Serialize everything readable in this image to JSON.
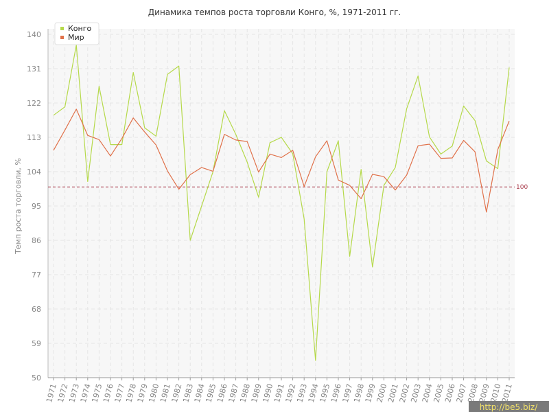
{
  "chart_data": {
    "type": "line",
    "title": "Динамика темпов роста торговли Конго, %, 1971-2011 гг.",
    "xlabel": "",
    "ylabel": "Темп роста торговли, %",
    "ylim": [
      50,
      140
    ],
    "yticks": [
      50,
      59,
      68,
      77,
      86,
      95,
      104,
      113,
      122,
      131,
      140
    ],
    "x": [
      "1971",
      "1972",
      "1973",
      "1974",
      "1975",
      "1976",
      "1977",
      "1978",
      "1979",
      "1980",
      "1981",
      "1982",
      "1983",
      "1984",
      "1985",
      "1986",
      "1987",
      "1988",
      "1989",
      "1990",
      "1991",
      "1992",
      "1993",
      "1994",
      "1995",
      "1996",
      "1997",
      "1998",
      "1999",
      "2000",
      "2001",
      "2002",
      "2003",
      "2004",
      "2005",
      "2006",
      "2007",
      "2008",
      "2009",
      "2010",
      "2011"
    ],
    "grid": true,
    "legend_position": "top-left",
    "reference_line": {
      "value": 100,
      "label": "100",
      "color": "#a83a4a"
    },
    "series": [
      {
        "name": "Конго",
        "color": "#b5d94a",
        "values": [
          118.8,
          121,
          137.2,
          101.4,
          126.4,
          111.1,
          111.1,
          130,
          115.5,
          113.3,
          129.5,
          131.7,
          86,
          95,
          104,
          120,
          113.8,
          106.5,
          97.3,
          111.6,
          113,
          108.7,
          91.6,
          54.5,
          104,
          112.1,
          81.8,
          104.6,
          79,
          100.4,
          105.1,
          120.5,
          129.1,
          113.1,
          108.6,
          110.7,
          121.2,
          117.4,
          106.8,
          104.8,
          131.3
        ]
      },
      {
        "name": "Мир",
        "color": "#e0714a",
        "values": [
          109.6,
          114.9,
          120.4,
          113.5,
          112.4,
          108.1,
          112.7,
          118.1,
          114.4,
          111,
          104.2,
          99.4,
          103.2,
          105.1,
          104.1,
          113.8,
          112.3,
          111.9,
          103.9,
          108.6,
          107.7,
          109.6,
          100.1,
          107.9,
          112.1,
          101.8,
          100.4,
          96.9,
          103.3,
          102.7,
          99.2,
          103.1,
          110.8,
          111.2,
          107.5,
          107.6,
          112.2,
          109.2,
          93.4,
          109.8,
          117.3
        ]
      }
    ]
  },
  "watermark": "http://be5.biz/",
  "colors": {
    "background": "#ffffff",
    "plot_background": "#f7f7f7",
    "grid": "#e4e4e4",
    "watermark_bg": "#7a7a7a",
    "watermark_text": "#f3e26a"
  }
}
